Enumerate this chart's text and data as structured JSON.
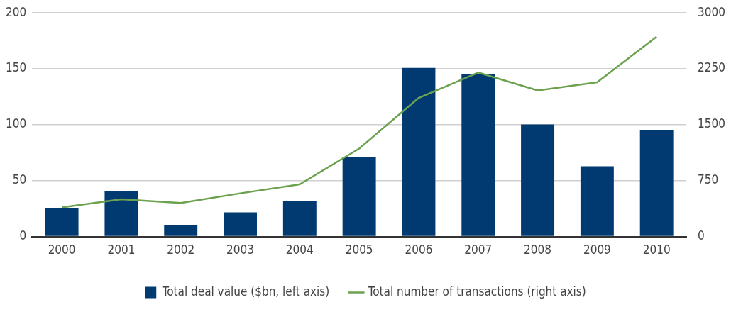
{
  "chart_data": {
    "type": "bar",
    "categories": [
      "2000",
      "2001",
      "2002",
      "2003",
      "2004",
      "2005",
      "2006",
      "2007",
      "2008",
      "2009",
      "2010"
    ],
    "series": [
      {
        "name": "Total deal value ($bn, left axis)",
        "color": "#003a70",
        "values": [
          25.6,
          40.8,
          10.5,
          21.6,
          31.5,
          71.1,
          150.9,
          144.9,
          100.2,
          62.9,
          95.5
        ]
      },
      {
        "name": "Total number of transactions (right axis)",
        "type": "line",
        "axis": "y2",
        "color": "#6ca14f",
        "values": [
          390,
          500,
          450,
          580,
          700,
          1180,
          1860,
          2200,
          1960,
          2070,
          2680
        ]
      }
    ],
    "ylim": [
      0,
      200
    ],
    "yticks": [
      0,
      50,
      100,
      150,
      200
    ],
    "y2lim": [
      0,
      3000
    ],
    "y2ticks": [
      0,
      750,
      1500,
      2250,
      3000
    ],
    "grid": "y",
    "legend": "bottom",
    "marker": "none"
  }
}
